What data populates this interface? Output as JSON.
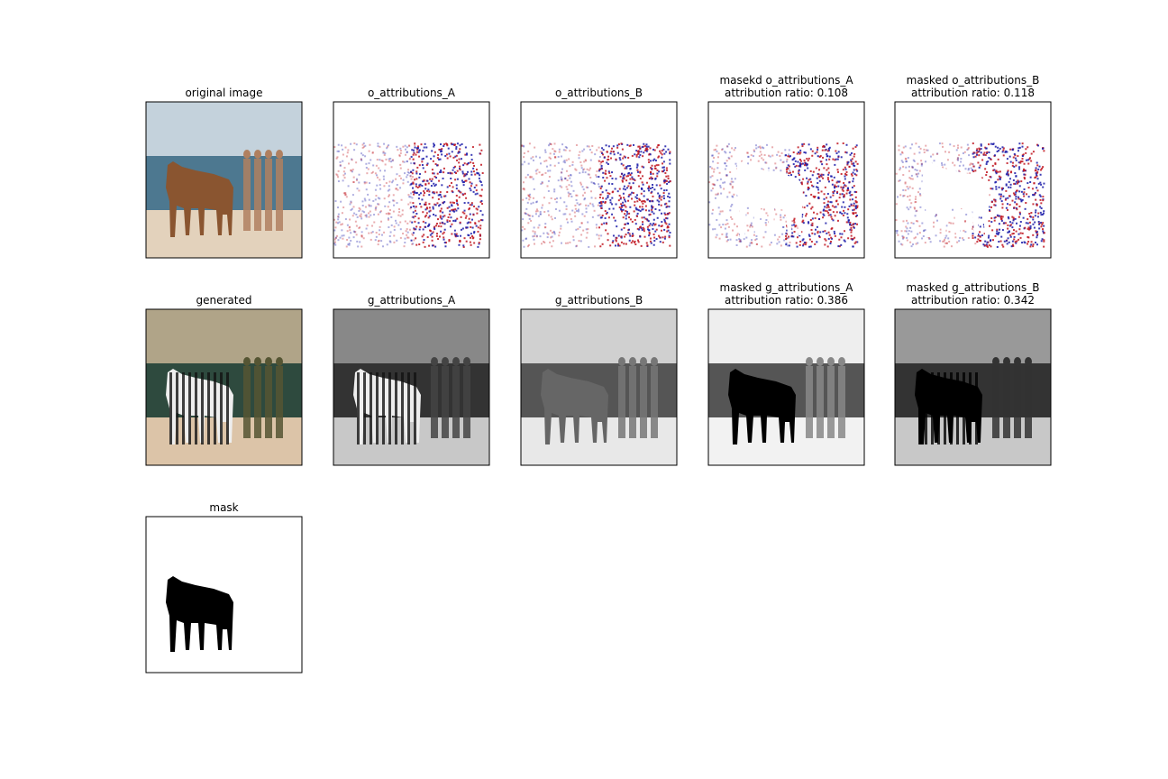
{
  "panels": [
    {
      "title": [
        "original image"
      ]
    },
    {
      "title": [
        "o_attributions_A"
      ]
    },
    {
      "title": [
        "o_attributions_B"
      ]
    },
    {
      "title": [
        "masekd o_attributions_A",
        "attribution ratio: 0.108"
      ]
    },
    {
      "title": [
        "masked o_attributions_B",
        "attribution ratio: 0.118"
      ]
    },
    {
      "title": [
        "generated"
      ]
    },
    {
      "title": [
        "g_attributions_A"
      ]
    },
    {
      "title": [
        "g_attributions_B"
      ]
    },
    {
      "title": [
        "masked g_attributions_A",
        "attribution ratio: 0.386"
      ]
    },
    {
      "title": [
        "masked g_attributions_B",
        "attribution ratio: 0.342"
      ]
    },
    {
      "title": [
        "mask"
      ]
    }
  ]
}
